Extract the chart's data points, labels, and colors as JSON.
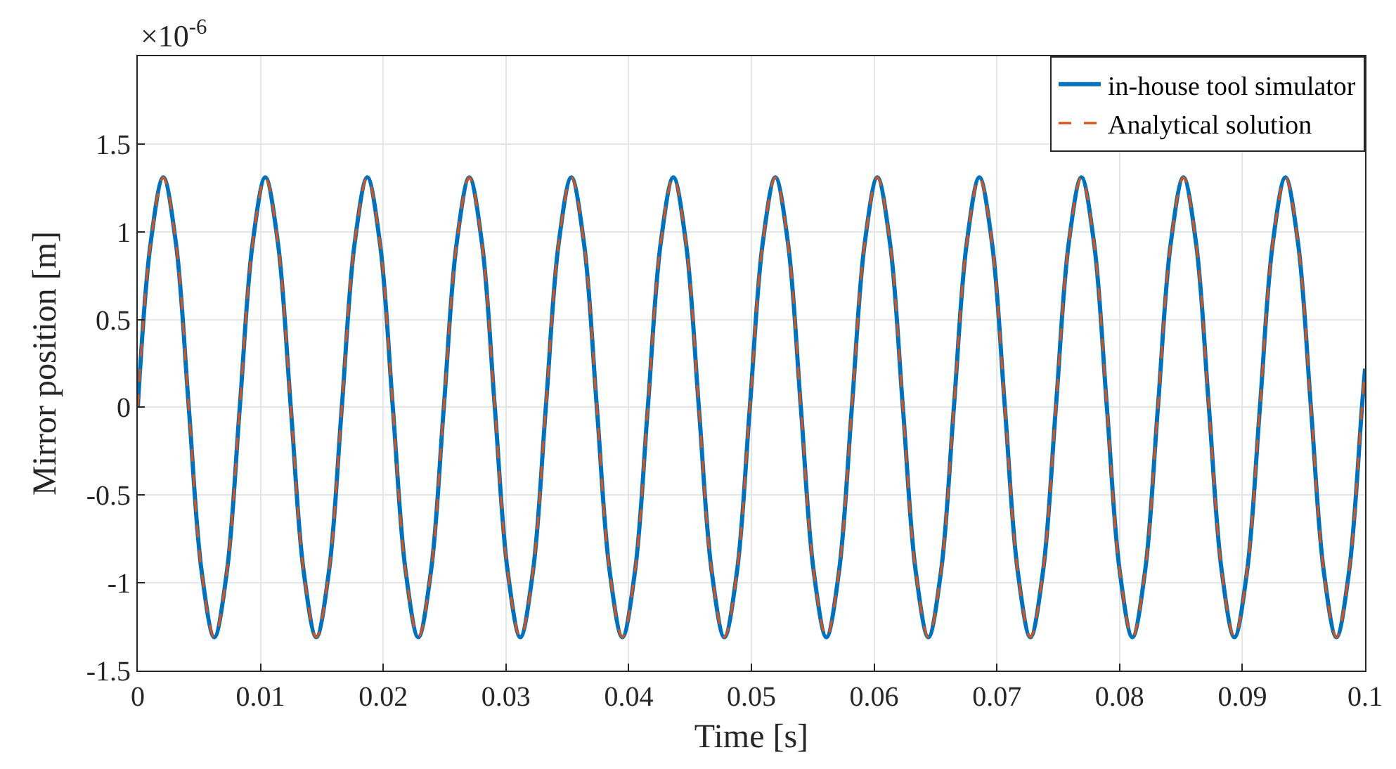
{
  "chart_data": {
    "type": "line",
    "xlabel": "Time [s]",
    "ylabel": "Mirror position [m]",
    "annotations": [
      "×10$^{-6}$"
    ],
    "x": [
      0,
      0.001039,
      0.002078,
      0.003117,
      0.004156,
      0.005195,
      0.006234,
      0.007273,
      0.008312,
      0.009351,
      0.01039,
      0.011429,
      0.012468,
      0.013507,
      0.014546,
      0.015585,
      0.016624,
      0.017663,
      0.018702,
      0.019741,
      0.02078,
      0.021819,
      0.022858,
      0.023897,
      0.024936,
      0.025975,
      0.027014,
      0.028053,
      0.029092,
      0.030131,
      0.03117,
      0.032209,
      0.033248,
      0.034287,
      0.035326,
      0.036365,
      0.037404,
      0.038443,
      0.039482,
      0.040521,
      0.04156,
      0.042599,
      0.043638,
      0.044677,
      0.045716,
      0.046755,
      0.047794,
      0.048833,
      0.049872,
      0.050911,
      0.05195,
      0.052989,
      0.054028,
      0.055067,
      0.056106,
      0.057145,
      0.058184,
      0.059223,
      0.060262,
      0.061301,
      0.06234,
      0.063379,
      0.064418,
      0.065457,
      0.066496,
      0.067535,
      0.068574,
      0.069613,
      0.070652,
      0.071691,
      0.07273,
      0.073769,
      0.074808,
      0.075847,
      0.076886,
      0.077925,
      0.078964,
      0.080003,
      0.081042,
      0.082081,
      0.08312,
      0.084159,
      0.085198,
      0.086237,
      0.087276,
      0.088315,
      0.089354,
      0.090393,
      0.091432,
      0.092471,
      0.09351,
      0.094549,
      0.095588,
      0.096627,
      0.097666,
      0.098705,
      0.099744,
      0.1
    ],
    "series": [
      {
        "name": "in-house tool simulator",
        "color": "#0072bd",
        "line_style": "solid",
        "values": [
          0,
          0.93,
          1.31,
          0.93,
          0,
          -0.93,
          -1.31,
          -0.93,
          0,
          0.93,
          1.31,
          0.93,
          0,
          -0.93,
          -1.31,
          -0.93,
          0,
          0.93,
          1.31,
          0.93,
          0,
          -0.93,
          -1.31,
          -0.93,
          0,
          0.93,
          1.31,
          0.93,
          0,
          -0.93,
          -1.31,
          -0.93,
          0,
          0.93,
          1.31,
          0.93,
          0,
          -0.93,
          -1.31,
          -0.93,
          0,
          0.93,
          1.31,
          0.93,
          0,
          -0.93,
          -1.31,
          -0.93,
          0,
          0.93,
          1.31,
          0.93,
          0,
          -0.93,
          -1.31,
          -0.93,
          0,
          0.93,
          1.31,
          0.93,
          0,
          -0.93,
          -1.31,
          -0.93,
          0,
          0.93,
          1.31,
          0.93,
          0,
          -0.93,
          -1.31,
          -0.93,
          0,
          0.93,
          1.31,
          0.93,
          0,
          -0.93,
          -1.31,
          -0.93,
          0,
          0.93,
          1.31,
          0.93,
          0,
          -0.93,
          -1.31,
          -0.93,
          0,
          0.93,
          1.31,
          0.93,
          0,
          -0.93,
          -1.31,
          -0.93,
          0,
          0.22
        ]
      },
      {
        "name": "Analytical solution",
        "color": "#d95319",
        "line_style": "dashed",
        "values": [
          0,
          0.93,
          1.31,
          0.93,
          0,
          -0.93,
          -1.31,
          -0.93,
          0,
          0.93,
          1.31,
          0.93,
          0,
          -0.93,
          -1.31,
          -0.93,
          0,
          0.93,
          1.31,
          0.93,
          0,
          -0.93,
          -1.31,
          -0.93,
          0,
          0.93,
          1.31,
          0.93,
          0,
          -0.93,
          -1.31,
          -0.93,
          0,
          0.93,
          1.31,
          0.93,
          0,
          -0.93,
          -1.31,
          -0.93,
          0,
          0.93,
          1.31,
          0.93,
          0,
          -0.93,
          -1.31,
          -0.93,
          0,
          0.93,
          1.31,
          0.93,
          0,
          -0.93,
          -1.31,
          -0.93,
          0,
          0.93,
          1.31,
          0.93,
          0,
          -0.93,
          -1.31,
          -0.93,
          0,
          0.93,
          1.31,
          0.93,
          0,
          -0.93,
          -1.31,
          -0.93,
          0,
          0.93,
          1.31,
          0.93,
          0,
          -0.93,
          -1.31,
          -0.93,
          0,
          0.93,
          1.31,
          0.93,
          0,
          -0.93,
          -1.31,
          -0.93,
          0,
          0.93,
          1.31,
          0.93,
          0,
          -0.93,
          -1.31,
          -0.93,
          0,
          0.22
        ]
      }
    ],
    "xlim": [
      0,
      0.1
    ],
    "xticks": [
      0,
      0.01,
      0.02,
      0.03,
      0.04,
      0.05,
      0.06,
      0.07,
      0.08,
      0.09,
      0.1
    ],
    "ylim": [
      -1.5,
      2
    ],
    "yticks": [
      -1.5,
      -1,
      -0.5,
      0,
      0.5,
      1,
      1.5
    ],
    "grid": true,
    "legend": "top right",
    "marker": "none"
  }
}
